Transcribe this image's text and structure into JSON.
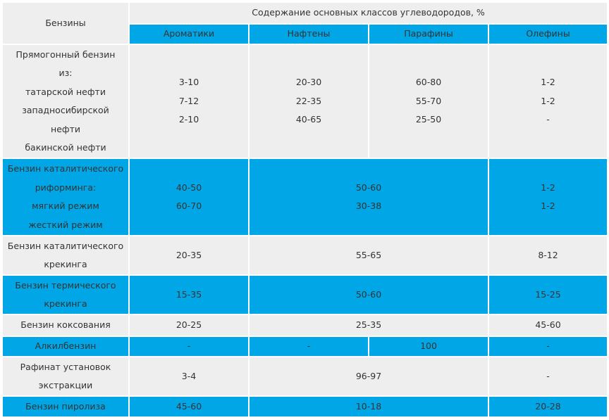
{
  "header": {
    "gasolines": "Бензины",
    "content": "Содержание основных классов углеводородов, %",
    "aromatics": "Ароматики",
    "naphthenes": "Нафтены",
    "paraffins": "Парафины",
    "olefins": "Олефины"
  },
  "rows": {
    "straight_run": {
      "name": "Прямогонный бензин\nиз:\nтатарской нефти\nзападносибирской\nнефти\nбакинской нефти",
      "aromatics": "3-10\n7-12\n2-10",
      "naphthenes": "20-30\n22-35\n40-65",
      "paraffins": "60-80\n55-70\n25-50",
      "olefins": "1-2\n1-2\n-"
    },
    "reforming": {
      "name": "Бензин каталитического\nриформинга:\nмягкий режим\nжесткий режим",
      "aromatics": "40-50\n60-70",
      "naph_paraf": "50-60\n30-38",
      "olefins": "1-2\n1-2"
    },
    "cracking": {
      "name": "Бензин каталитического\nкрекинга",
      "aromatics": "20-35",
      "naph_paraf": "55-65",
      "olefins": "8-12"
    },
    "thermal": {
      "name": "Бензин термического\nкрекинга",
      "aromatics": "15-35",
      "naph_paraf": "50-60",
      "olefins": "15-25"
    },
    "coking": {
      "name": "Бензин коксования",
      "aromatics": "20-25",
      "naph_paraf": "25-35",
      "olefins": "45-60"
    },
    "alkyl": {
      "name": "Алкилбензин",
      "aromatics": "-",
      "naphthenes": "-",
      "paraffins": "100",
      "olefins": "-"
    },
    "raffinate": {
      "name": "Рафинат установок\nэкстракции",
      "aromatics": "3-4",
      "naph_paraf": "96-97",
      "olefins": "-"
    },
    "pyrolysis": {
      "name": "Бензин пиролиза",
      "aromatics": "45-60",
      "naph_paraf": "10-18",
      "olefins": "20-28"
    }
  },
  "colors": {
    "blue": "#00a6e5",
    "gray": "#eeeeee",
    "text": "#333333"
  }
}
